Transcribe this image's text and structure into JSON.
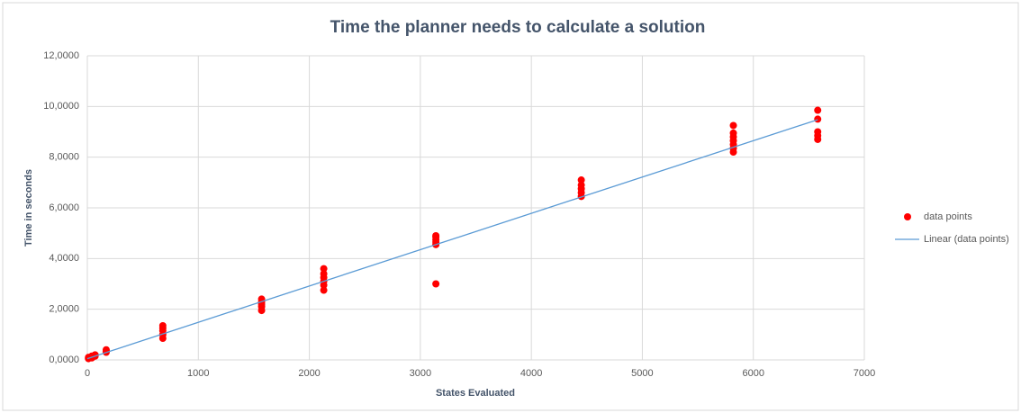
{
  "chart_data": {
    "type": "scatter",
    "title": "Time the planner needs to calculate a solution",
    "x_label": "States Evaluated",
    "y_label": "Time in seconds",
    "xlim": [
      0,
      7000
    ],
    "xticks": [
      0,
      1000,
      2000,
      3000,
      4000,
      5000,
      6000,
      7000
    ],
    "ylim": [
      0,
      12
    ],
    "yticks": [
      {
        "value": 0,
        "label": "0,0000"
      },
      {
        "value": 2,
        "label": "2,0000"
      },
      {
        "value": 4,
        "label": "4,0000"
      },
      {
        "value": 6,
        "label": "6,0000"
      },
      {
        "value": 8,
        "label": "8,0000"
      },
      {
        "value": 10,
        "label": "10,0000"
      },
      {
        "value": 12,
        "label": "12,0000"
      }
    ],
    "grid": true,
    "legend": "right",
    "series": [
      {
        "name": "data points",
        "color": "#ff0000",
        "kind": "scatter",
        "x": [
          10,
          10,
          40,
          40,
          70,
          70,
          170,
          170,
          170,
          680,
          680,
          680,
          680,
          680,
          1570,
          1570,
          1570,
          1570,
          1570,
          2130,
          2130,
          2130,
          2130,
          2130,
          2130,
          3140,
          3140,
          3140,
          3140,
          3140,
          3140,
          4450,
          4450,
          4450,
          4450,
          4450,
          5820,
          5820,
          5820,
          5820,
          5820,
          5820,
          5820,
          6580,
          6580,
          6580,
          6580,
          6580
        ],
        "values": [
          0.05,
          0.1,
          0.08,
          0.15,
          0.15,
          0.2,
          0.3,
          0.35,
          0.4,
          0.85,
          1.0,
          1.15,
          1.25,
          1.35,
          1.95,
          2.1,
          2.2,
          2.3,
          2.4,
          2.75,
          2.95,
          3.1,
          3.25,
          3.4,
          3.6,
          3.0,
          4.55,
          4.65,
          4.75,
          4.85,
          4.9,
          6.45,
          6.6,
          6.75,
          6.9,
          7.1,
          8.2,
          8.35,
          8.5,
          8.65,
          8.8,
          8.95,
          9.25,
          8.7,
          8.85,
          9.0,
          9.5,
          9.85
        ]
      },
      {
        "name": "Linear (data points)",
        "color": "#5b9bd5",
        "kind": "line",
        "x": [
          0,
          6580
        ],
        "values": [
          0.05,
          9.48
        ]
      }
    ]
  }
}
